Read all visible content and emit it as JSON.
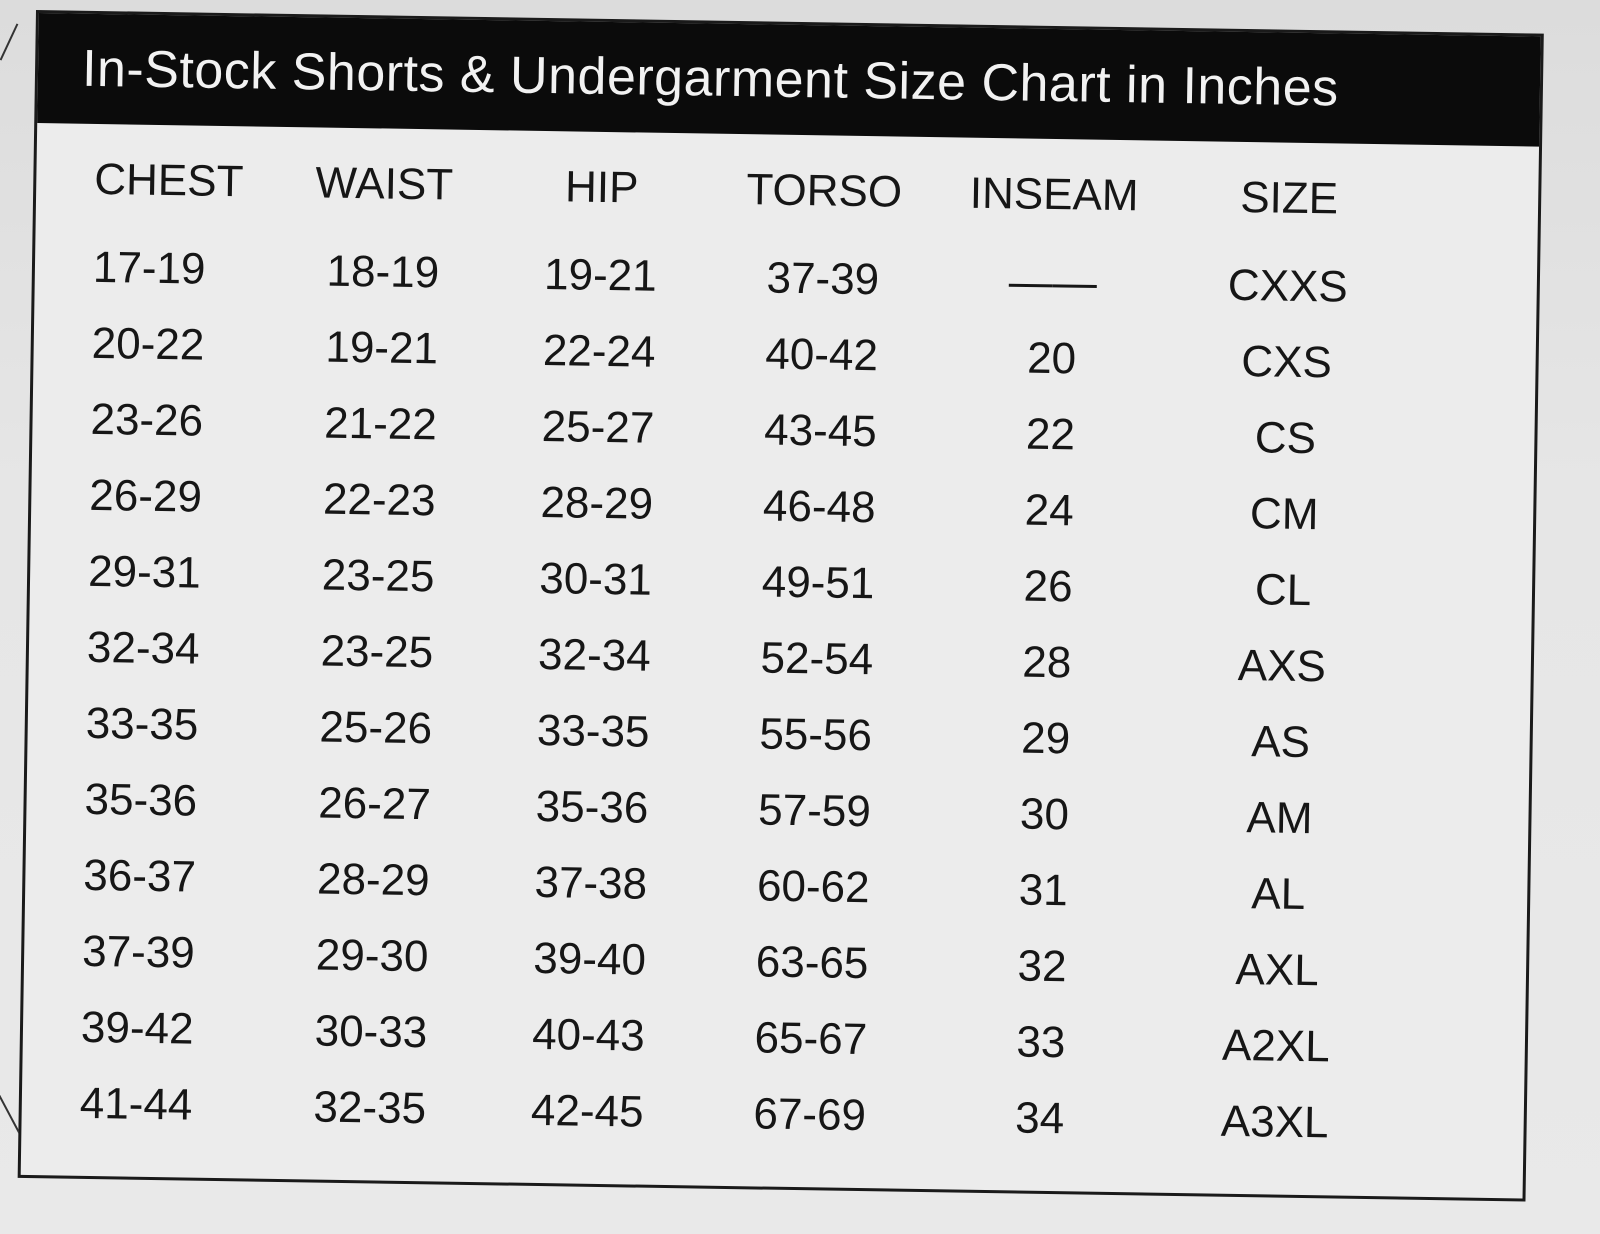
{
  "title": "In-Stock Shorts & Undergarment Size Chart in Inches",
  "columns": [
    "CHEST",
    "WAIST",
    "HIP",
    "TORSO",
    "INSEAM",
    "SIZE"
  ],
  "rows": [
    {
      "chest": "17-19",
      "waist": "18-19",
      "hip": "19-21",
      "torso": "37-39",
      "inseam": "——",
      "size": "CXXS"
    },
    {
      "chest": "20-22",
      "waist": "19-21",
      "hip": "22-24",
      "torso": "40-42",
      "inseam": "20",
      "size": "CXS"
    },
    {
      "chest": "23-26",
      "waist": "21-22",
      "hip": "25-27",
      "torso": "43-45",
      "inseam": "22",
      "size": "CS"
    },
    {
      "chest": "26-29",
      "waist": "22-23",
      "hip": "28-29",
      "torso": "46-48",
      "inseam": "24",
      "size": "CM"
    },
    {
      "chest": "29-31",
      "waist": "23-25",
      "hip": "30-31",
      "torso": "49-51",
      "inseam": "26",
      "size": "CL"
    },
    {
      "chest": "32-34",
      "waist": "23-25",
      "hip": "32-34",
      "torso": "52-54",
      "inseam": "28",
      "size": "AXS"
    },
    {
      "chest": "33-35",
      "waist": "25-26",
      "hip": "33-35",
      "torso": "55-56",
      "inseam": "29",
      "size": "AS"
    },
    {
      "chest": "35-36",
      "waist": "26-27",
      "hip": "35-36",
      "torso": "57-59",
      "inseam": "30",
      "size": "AM"
    },
    {
      "chest": "36-37",
      "waist": "28-29",
      "hip": "37-38",
      "torso": "60-62",
      "inseam": "31",
      "size": "AL"
    },
    {
      "chest": "37-39",
      "waist": "29-30",
      "hip": "39-40",
      "torso": "63-65",
      "inseam": "32",
      "size": "AXL"
    },
    {
      "chest": "39-42",
      "waist": "30-33",
      "hip": "40-43",
      "torso": "65-67",
      "inseam": "33",
      "size": "A2XL"
    },
    {
      "chest": "41-44",
      "waist": "32-35",
      "hip": "42-45",
      "torso": "67-69",
      "inseam": "34",
      "size": "A3XL"
    }
  ]
}
